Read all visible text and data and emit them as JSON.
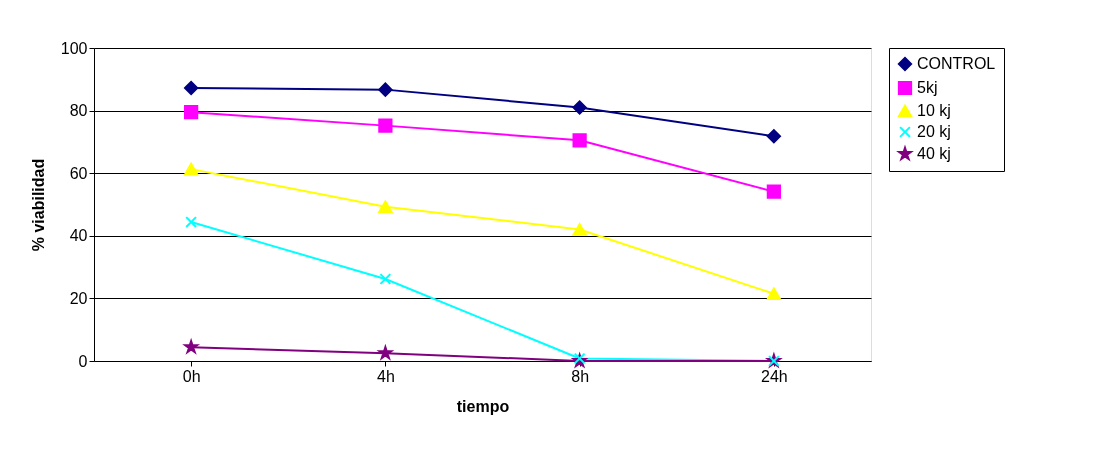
{
  "chart_data": {
    "type": "line",
    "xlabel": "tiempo",
    "ylabel": "% viabilidad",
    "categories": [
      "0h",
      "4h",
      "8h",
      "24h"
    ],
    "series": [
      {
        "name": "CONTROL",
        "color": "#000080",
        "marker": "diamond",
        "values": [
          87.2,
          86.7,
          81.0,
          71.8
        ]
      },
      {
        "name": "5kj",
        "color": "#ff00ff",
        "marker": "square",
        "values": [
          79.5,
          75.2,
          70.5,
          54.1
        ]
      },
      {
        "name": "10 kj",
        "color": "#ffff00",
        "marker": "triangle",
        "values": [
          61.3,
          49.3,
          42.0,
          21.5
        ]
      },
      {
        "name": "20 kj",
        "color": "#00ffff",
        "marker": "cross",
        "values": [
          44.4,
          26.2,
          0.8,
          0
        ]
      },
      {
        "name": "40 kj",
        "color": "#800080",
        "marker": "star",
        "values": [
          4.4,
          2.5,
          0,
          0
        ]
      }
    ],
    "ylim": [
      0,
      100
    ],
    "yticks": [
      0,
      20,
      40,
      60,
      80,
      100
    ],
    "grid": "y",
    "legend": "right",
    "line_style": "solid"
  }
}
